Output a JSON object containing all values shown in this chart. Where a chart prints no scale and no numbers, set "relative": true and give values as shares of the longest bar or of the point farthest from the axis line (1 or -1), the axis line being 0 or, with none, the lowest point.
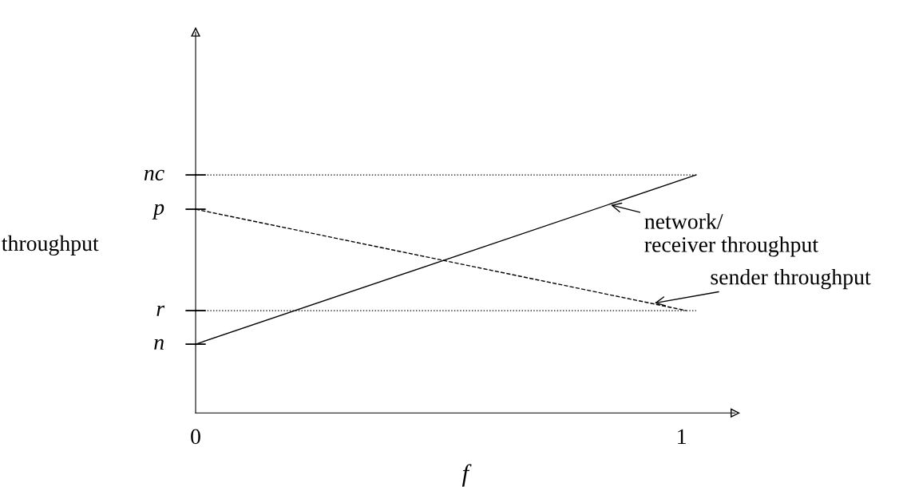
{
  "chart_data": {
    "type": "line",
    "relative": true,
    "ylabel": "throughput",
    "xlabel": "f",
    "xlim": [
      0,
      1.11
    ],
    "xticks": [
      0,
      1
    ],
    "series": [
      {
        "x": [
          0,
          1.03
        ],
        "values": [
          0.289,
          1
        ],
        "color": "#000000",
        "line_style": "solid"
      },
      {
        "x": [
          0,
          1.01
        ],
        "values": [
          0.856,
          0.43
        ],
        "color": "#000000",
        "line_style": "dashed"
      }
    ],
    "ref_lines": [
      {
        "axis": "y",
        "value": 1,
        "line_style": "dotted",
        "color": "#000000"
      },
      {
        "axis": "y",
        "value": 0.43,
        "line_style": "dotted",
        "color": "#000000"
      }
    ],
    "annotations": [
      {
        "text": "nc",
        "x": 0,
        "y": 1
      },
      {
        "text": "p",
        "x": 0,
        "y": 0.856
      },
      {
        "text": "r",
        "x": 0,
        "y": 0.43
      },
      {
        "text": "n",
        "x": 0,
        "y": 0.289
      },
      {
        "text": "network/\nreceiver throughput",
        "x": 0.85,
        "y": 0.876
      },
      {
        "text": "sender throughput",
        "x": 0.94,
        "y": 0.46
      }
    ]
  }
}
